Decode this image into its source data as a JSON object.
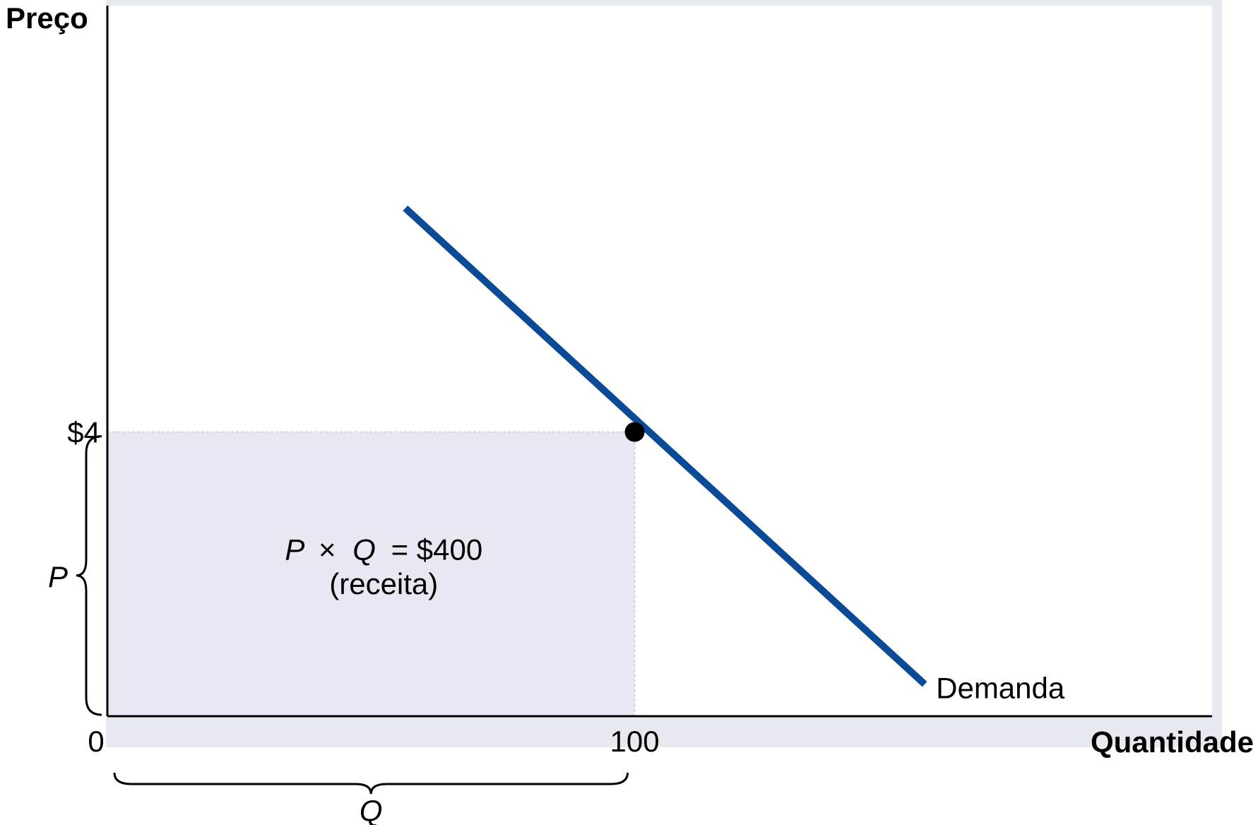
{
  "chart_data": {
    "type": "line",
    "title": "",
    "ylabel": "Preço",
    "xlabel": "Quantidade",
    "ylim": [
      0,
      10
    ],
    "xlim": [
      0,
      209.5
    ],
    "grid": false,
    "series": [
      {
        "name": "Demanda",
        "x": [
          56.5,
          155
        ],
        "y": [
          7.15,
          0.45
        ],
        "color": "#0a4a96"
      }
    ],
    "point": {
      "x": 100,
      "y": 4
    },
    "x_ticks": [
      {
        "value": 0,
        "label": "0"
      },
      {
        "value": 100,
        "label": "100"
      }
    ],
    "y_ticks": [
      {
        "value": 4,
        "label": "$4"
      }
    ],
    "revenue_area": {
      "x": [
        0,
        100
      ],
      "y": [
        0,
        4
      ],
      "color": "#ece6f2",
      "label_formula_p": "P",
      "label_formula_times": "×",
      "label_formula_q": "Q",
      "label_formula_rest": "= $400",
      "label_caption": "(receita)"
    },
    "braces": {
      "price_label": "P",
      "quantity_label": "Q"
    },
    "axis_color": "#000000",
    "shadow_color": "#e6e9ef"
  }
}
